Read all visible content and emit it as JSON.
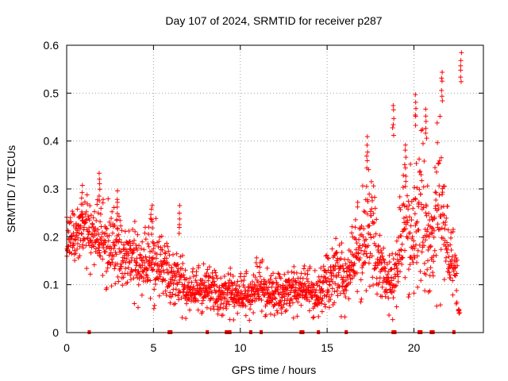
{
  "chart_data": {
    "type": "scatter",
    "title": "Day 107 of 2024, SRMTID for receiver p287",
    "xlabel": "GPS time / hours",
    "ylabel": "SRMTID / TECUs",
    "xlim": [
      0,
      24
    ],
    "ylim": [
      0,
      0.6
    ],
    "xticks": [
      0,
      5,
      10,
      15,
      20
    ],
    "xtick_labels": [
      "0",
      "5",
      "10",
      "15",
      "20"
    ],
    "yticks": [
      0,
      0.1,
      0.2,
      0.3,
      0.4,
      0.5,
      0.6
    ],
    "ytick_labels": [
      "0",
      "0.1",
      "0.2",
      "0.3",
      "0.4",
      "0.5",
      "0.6"
    ],
    "grid": true,
    "marker": "+",
    "color": "#ff0000",
    "series": [
      {
        "name": "SRMTID",
        "envelope_hours": [
          0,
          0.5,
          1,
          1.5,
          2,
          2.5,
          3,
          3.5,
          4,
          4.5,
          5,
          5.5,
          6,
          6.5,
          7,
          7.5,
          8,
          8.5,
          9,
          9.5,
          10,
          10.5,
          11,
          11.5,
          12,
          12.5,
          13,
          13.5,
          14,
          14.5,
          15,
          15.5,
          16,
          16.5,
          17,
          17.5,
          18,
          18.5,
          19,
          19.5,
          20,
          20.5,
          21,
          21.5,
          22,
          22.5
        ],
        "median": [
          0.19,
          0.2,
          0.21,
          0.2,
          0.18,
          0.17,
          0.16,
          0.15,
          0.14,
          0.13,
          0.14,
          0.13,
          0.11,
          0.1,
          0.08,
          0.08,
          0.09,
          0.08,
          0.07,
          0.08,
          0.07,
          0.07,
          0.09,
          0.08,
          0.07,
          0.08,
          0.08,
          0.09,
          0.08,
          0.07,
          0.1,
          0.12,
          0.1,
          0.14,
          0.17,
          0.2,
          0.14,
          0.09,
          0.12,
          0.22,
          0.18,
          0.24,
          0.15,
          0.28,
          0.14,
          0.12
        ],
        "spread": [
          0.03,
          0.04,
          0.04,
          0.05,
          0.05,
          0.06,
          0.05,
          0.04,
          0.05,
          0.05,
          0.06,
          0.04,
          0.04,
          0.04,
          0.03,
          0.03,
          0.03,
          0.03,
          0.03,
          0.03,
          0.03,
          0.03,
          0.04,
          0.03,
          0.03,
          0.03,
          0.03,
          0.03,
          0.03,
          0.03,
          0.04,
          0.05,
          0.04,
          0.05,
          0.07,
          0.09,
          0.05,
          0.03,
          0.06,
          0.09,
          0.08,
          0.12,
          0.06,
          0.13,
          0.05,
          0.04
        ],
        "spikes": [
          {
            "x": 0.9,
            "y": 0.31
          },
          {
            "x": 1.9,
            "y": 0.34
          },
          {
            "x": 2.9,
            "y": 0.3
          },
          {
            "x": 4.9,
            "y": 0.27
          },
          {
            "x": 6.5,
            "y": 0.27
          },
          {
            "x": 17.3,
            "y": 0.41
          },
          {
            "x": 18.8,
            "y": 0.48
          },
          {
            "x": 19.5,
            "y": 0.37
          },
          {
            "x": 20.1,
            "y": 0.5
          },
          {
            "x": 20.7,
            "y": 0.47
          },
          {
            "x": 21.6,
            "y": 0.55
          },
          {
            "x": 22.7,
            "y": 0.59
          },
          {
            "x": 22.6,
            "y": 0.05
          }
        ],
        "zero_points": [
          1.3,
          5.9,
          6.0,
          8.1,
          9.2,
          9.3,
          9.4,
          10.6,
          11.2,
          13.5,
          13.6,
          14.5,
          16.1,
          18.8,
          18.9,
          20.3,
          20.4,
          21.0,
          21.1,
          22.3
        ]
      }
    ]
  }
}
